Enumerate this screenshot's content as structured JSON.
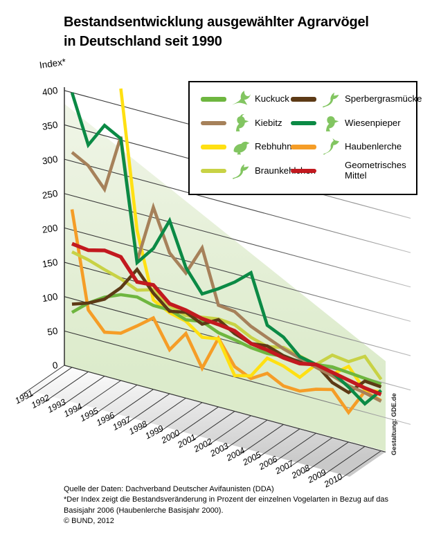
{
  "title": {
    "line1": "Bestandsentwicklung ausgewählter Agrarvögel",
    "line2": "in Deutschland seit 1990"
  },
  "ylabel": "Index*",
  "credit": "Gestaltung: GDE.de",
  "footer": {
    "line1": "Quelle der Daten: Dachverband Deutscher Avifaunisten (DDA)",
    "line2": "*Der Index zeigt die Bestandsveränderung in Prozent der einzelnen Vogelarten in Bezug auf das",
    "line3": "Basisjahr 2006 (Haubenlerche Basisjahr 2000).",
    "line4": "© BUND, 2012"
  },
  "legend": {
    "columns": [
      [
        {
          "label": "Kuckuck",
          "color": "#6eb63f",
          "bird": "flying-cuckoo"
        },
        {
          "label": "Kiebitz",
          "color": "#a6815a",
          "bird": "crested-lapwing"
        },
        {
          "label": "Rebhuhn",
          "color": "#ffe012",
          "bird": "partridge"
        },
        {
          "label": "Braunkehlchen",
          "color": "#c8d245",
          "bird": "perched-whinchat"
        }
      ],
      [
        {
          "label": "Sperbergrasmücke",
          "color": "#5d3a16",
          "bird": "perched-warbler"
        },
        {
          "label": "Wiesenpieper",
          "color": "#0b8a45",
          "bird": "standing-pipit"
        },
        {
          "label": "Haubenlerche",
          "color": "#f59d27",
          "bird": "crested-lark"
        },
        {
          "label": "Geometrisches Mittel",
          "color": "#c2191f",
          "bird": null
        }
      ]
    ]
  },
  "chart_data": {
    "type": "line",
    "title": "Bestandsentwicklung ausgewählter Agrarvögel in Deutschland seit 1990",
    "ylabel": "Index*",
    "ylim": [
      0,
      400
    ],
    "yticks": [
      0,
      50,
      100,
      150,
      200,
      250,
      300,
      350,
      400
    ],
    "grid": true,
    "legend_position": "top-right",
    "source": "Dachverband Deutscher Avifaunisten (DDA)",
    "index_note": "Index in Prozent, Basisjahr 2006 = 100 (Haubenlerche Basisjahr 2000)",
    "x": [
      1991,
      1992,
      1993,
      1994,
      1995,
      1996,
      1997,
      1998,
      1999,
      2000,
      2001,
      2002,
      2003,
      2004,
      2005,
      2006,
      2007,
      2008,
      2009,
      2010
    ],
    "series": [
      {
        "name": "Kuckuck",
        "color": "#6eb63f",
        "values": [
          80,
          100,
          115,
          125,
          128,
          122,
          122,
          114,
          118,
          108,
          104,
          99,
          97,
          99,
          96,
          100,
          103,
          101,
          99,
          97
        ]
      },
      {
        "name": "Kiebitz",
        "color": "#a6815a",
        "values": [
          313,
          300,
          272,
          355,
          180,
          265,
          205,
          182,
          225,
          148,
          145,
          130,
          120,
          110,
          103,
          96,
          90,
          82,
          78,
          72
        ]
      },
      {
        "name": "Rebhuhn",
        "color": "#ffe012",
        "values": [
          null,
          null,
          null,
          425,
          225,
          130,
          118,
          112,
          95,
          99,
          52,
          58,
          90,
          85,
          75,
          100,
          92,
          110,
          82,
          86
        ]
      },
      {
        "name": "Braunkehlchen",
        "color": "#c8d245",
        "values": [
          168,
          163,
          155,
          148,
          138,
          145,
          128,
          120,
          124,
          128,
          126,
          114,
          107,
          112,
          106,
          100,
          120,
          117,
          131,
          104
        ]
      },
      {
        "name": "Sperbergrasmücke",
        "color": "#5d3a16",
        "values": [
          92,
          100,
          112,
          135,
          168,
          140,
          120,
          125,
          114,
          127,
          113,
          105,
          108,
          100,
          97,
          100,
          80,
          72,
          95,
          93
        ]
      },
      {
        "name": "Wiesenpieper",
        "color": "#0b8a45",
        "values": [
          400,
          330,
          365,
          352,
          178,
          205,
          252,
          190,
          158,
          172,
          188,
          208,
          138,
          127,
          105,
          100,
          95,
          80,
          62,
          88
        ]
      },
      {
        "name": "Haubenlerche",
        "color": "#f59d27",
        "values": [
          230,
          90,
          64,
          69,
          86,
          104,
          64,
          94,
          50,
          100,
          65,
          54,
          68,
          56,
          55,
          64,
          70,
          43,
          80,
          73
        ]
      },
      {
        "name": "Geometrisches Mittel",
        "color": "#c2191f",
        "values": [
          180,
          177,
          183,
          180,
          150,
          152,
          131,
          128,
          122,
          120,
          117,
          105,
          102,
          97,
          95,
          100,
          95,
          90,
          85,
          82
        ]
      }
    ]
  }
}
